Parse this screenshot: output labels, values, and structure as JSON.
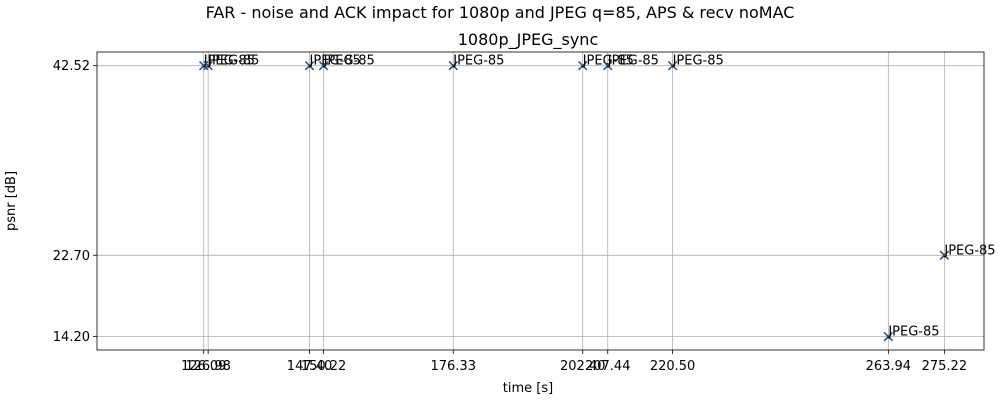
{
  "chart_data": {
    "type": "scatter",
    "suptitle": "FAR - noise and ACK impact for 1080p and JPEG q=85, APS & recv noMAC",
    "title": "1080p_JPEG_sync",
    "xlabel": "time [s]",
    "ylabel": "psnr [dB]",
    "xlim": [
      104.6,
      283.2
    ],
    "ylim": [
      12.8,
      43.95
    ],
    "grid": true,
    "marker": "x",
    "marker_color": "#1f4e79",
    "x_ticks": [
      {
        "value": 126.09,
        "label": "126.09"
      },
      {
        "value": 126.98,
        "label": "126.98"
      },
      {
        "value": 147.4,
        "label": "147.40"
      },
      {
        "value": 150.22,
        "label": "150.22"
      },
      {
        "value": 176.33,
        "label": "176.33"
      },
      {
        "value": 202.4,
        "label": "202.40"
      },
      {
        "value": 207.44,
        "label": "207.44"
      },
      {
        "value": 220.5,
        "label": "220.50"
      },
      {
        "value": 263.94,
        "label": "263.94"
      },
      {
        "value": 275.22,
        "label": "275.22"
      }
    ],
    "y_ticks": [
      {
        "value": 14.2,
        "label": "14.20"
      },
      {
        "value": 22.7,
        "label": "22.70"
      },
      {
        "value": 42.52,
        "label": "42.52"
      }
    ],
    "points": [
      {
        "x": 126.09,
        "y": 42.52,
        "label": "JPEG-85"
      },
      {
        "x": 126.98,
        "y": 42.52,
        "label": "JPEG-85"
      },
      {
        "x": 147.4,
        "y": 42.52,
        "label": "JPEG-85"
      },
      {
        "x": 150.22,
        "y": 42.52,
        "label": "JPEG-85"
      },
      {
        "x": 176.33,
        "y": 42.52,
        "label": "JPEG-85"
      },
      {
        "x": 202.4,
        "y": 42.52,
        "label": "JPEG-85"
      },
      {
        "x": 207.44,
        "y": 42.52,
        "label": "JPEG-85"
      },
      {
        "x": 220.5,
        "y": 42.52,
        "label": "JPEG-85"
      },
      {
        "x": 263.94,
        "y": 14.2,
        "label": "JPEG-85"
      },
      {
        "x": 275.22,
        "y": 22.7,
        "label": "JPEG-85"
      }
    ]
  }
}
